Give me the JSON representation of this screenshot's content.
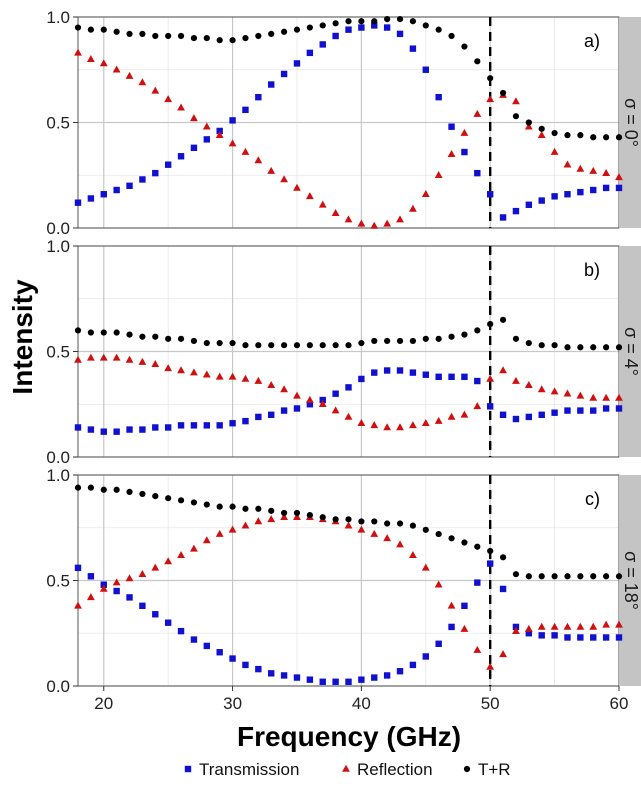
{
  "chart_data": {
    "type": "scatter",
    "xlabel": "Frequency (GHz)",
    "ylabel": "Intensity",
    "xlim": [
      18,
      60
    ],
    "ylim": [
      0,
      1
    ],
    "x_ticks": [
      "20",
      "30",
      "40",
      "50",
      "60"
    ],
    "y_ticks": [
      "0.0",
      "0.5",
      "1.0"
    ],
    "grid": true,
    "legend_position": "bottom",
    "reference_line": {
      "x": 50,
      "style": "dashed"
    },
    "legend": [
      {
        "key": "transmission",
        "label": "Transmission",
        "marker": "square",
        "color": "#1010d0"
      },
      {
        "key": "reflection",
        "label": "Reflection",
        "marker": "triangle",
        "color": "#d01010"
      },
      {
        "key": "tr",
        "label": "T+R",
        "marker": "circle",
        "color": "#000000"
      }
    ],
    "panels": [
      {
        "tag": "a)",
        "strip": "σ = 0°",
        "x": [
          18,
          19,
          20,
          21,
          22,
          23,
          24,
          25,
          26,
          27,
          28,
          29,
          30,
          31,
          32,
          33,
          34,
          35,
          36,
          37,
          38,
          39,
          40,
          41,
          42,
          43,
          44,
          45,
          46,
          47,
          48,
          49,
          50,
          51,
          52,
          53,
          54,
          55,
          56,
          57,
          58,
          59,
          60
        ],
        "series": [
          {
            "key": "transmission",
            "values": [
              0.12,
              0.14,
              0.16,
              0.18,
              0.2,
              0.23,
              0.26,
              0.3,
              0.34,
              0.38,
              0.42,
              0.46,
              0.51,
              0.56,
              0.62,
              0.68,
              0.73,
              0.78,
              0.83,
              0.87,
              0.91,
              0.94,
              0.95,
              0.96,
              0.95,
              0.92,
              0.85,
              0.75,
              0.62,
              0.48,
              0.36,
              0.26,
              0.16,
              0.05,
              0.08,
              0.11,
              0.13,
              0.15,
              0.16,
              0.17,
              0.18,
              0.19,
              0.19
            ]
          },
          {
            "key": "reflection",
            "values": [
              0.83,
              0.8,
              0.78,
              0.75,
              0.72,
              0.69,
              0.65,
              0.61,
              0.57,
              0.52,
              0.48,
              0.44,
              0.4,
              0.36,
              0.32,
              0.27,
              0.23,
              0.19,
              0.15,
              0.11,
              0.07,
              0.04,
              0.02,
              0.01,
              0.02,
              0.04,
              0.09,
              0.16,
              0.25,
              0.35,
              0.45,
              0.54,
              0.61,
              0.63,
              0.6,
              0.48,
              0.44,
              0.36,
              0.3,
              0.28,
              0.27,
              0.26,
              0.24
            ]
          },
          {
            "key": "tr",
            "values": [
              0.95,
              0.94,
              0.94,
              0.93,
              0.92,
              0.92,
              0.91,
              0.91,
              0.91,
              0.9,
              0.9,
              0.89,
              0.89,
              0.9,
              0.91,
              0.92,
              0.93,
              0.94,
              0.95,
              0.96,
              0.97,
              0.98,
              0.98,
              0.98,
              0.99,
              0.99,
              0.98,
              0.96,
              0.94,
              0.91,
              0.86,
              0.79,
              0.71,
              0.64,
              0.53,
              0.5,
              0.47,
              0.45,
              0.44,
              0.44,
              0.43,
              0.43,
              0.43
            ]
          }
        ]
      },
      {
        "tag": "b)",
        "strip": "σ = 4°",
        "x": [
          18,
          19,
          20,
          21,
          22,
          23,
          24,
          25,
          26,
          27,
          28,
          29,
          30,
          31,
          32,
          33,
          34,
          35,
          36,
          37,
          38,
          39,
          40,
          41,
          42,
          43,
          44,
          45,
          46,
          47,
          48,
          49,
          50,
          51,
          52,
          53,
          54,
          55,
          56,
          57,
          58,
          59,
          60
        ],
        "series": [
          {
            "key": "transmission",
            "values": [
              0.14,
              0.13,
              0.12,
              0.12,
              0.13,
              0.13,
              0.14,
              0.14,
              0.15,
              0.15,
              0.15,
              0.15,
              0.16,
              0.17,
              0.19,
              0.2,
              0.22,
              0.23,
              0.25,
              0.27,
              0.3,
              0.33,
              0.37,
              0.4,
              0.41,
              0.41,
              0.4,
              0.39,
              0.38,
              0.38,
              0.38,
              0.36,
              0.24,
              0.2,
              0.18,
              0.19,
              0.2,
              0.21,
              0.22,
              0.22,
              0.22,
              0.23,
              0.23
            ]
          },
          {
            "key": "reflection",
            "values": [
              0.46,
              0.47,
              0.47,
              0.47,
              0.46,
              0.45,
              0.44,
              0.42,
              0.41,
              0.4,
              0.39,
              0.38,
              0.38,
              0.37,
              0.36,
              0.34,
              0.32,
              0.29,
              0.27,
              0.25,
              0.22,
              0.19,
              0.16,
              0.15,
              0.14,
              0.14,
              0.15,
              0.16,
              0.17,
              0.19,
              0.2,
              0.24,
              0.37,
              0.41,
              0.36,
              0.34,
              0.32,
              0.31,
              0.3,
              0.29,
              0.28,
              0.28,
              0.28
            ]
          },
          {
            "key": "tr",
            "values": [
              0.6,
              0.59,
              0.59,
              0.59,
              0.58,
              0.57,
              0.57,
              0.56,
              0.56,
              0.55,
              0.54,
              0.54,
              0.54,
              0.53,
              0.53,
              0.53,
              0.53,
              0.53,
              0.53,
              0.53,
              0.53,
              0.53,
              0.54,
              0.55,
              0.55,
              0.55,
              0.55,
              0.56,
              0.56,
              0.57,
              0.58,
              0.6,
              0.63,
              0.65,
              0.56,
              0.54,
              0.53,
              0.53,
              0.52,
              0.52,
              0.52,
              0.52,
              0.52
            ]
          }
        ]
      },
      {
        "tag": "c)",
        "strip": "σ = 18°",
        "x": [
          18,
          19,
          20,
          21,
          22,
          23,
          24,
          25,
          26,
          27,
          28,
          29,
          30,
          31,
          32,
          33,
          34,
          35,
          36,
          37,
          38,
          39,
          40,
          41,
          42,
          43,
          44,
          45,
          46,
          47,
          48,
          49,
          50,
          51,
          52,
          53,
          54,
          55,
          56,
          57,
          58,
          59,
          60
        ],
        "series": [
          {
            "key": "transmission",
            "values": [
              0.56,
              0.52,
              0.48,
              0.45,
              0.42,
              0.38,
              0.34,
              0.3,
              0.26,
              0.22,
              0.19,
              0.16,
              0.13,
              0.1,
              0.08,
              0.06,
              0.05,
              0.04,
              0.03,
              0.02,
              0.02,
              0.02,
              0.03,
              0.04,
              0.05,
              0.07,
              0.1,
              0.14,
              0.2,
              0.28,
              0.38,
              0.49,
              0.58,
              0.46,
              0.28,
              0.25,
              0.24,
              0.24,
              0.23,
              0.23,
              0.23,
              0.23,
              0.23
            ]
          },
          {
            "key": "reflection",
            "values": [
              0.38,
              0.42,
              0.46,
              0.49,
              0.51,
              0.53,
              0.56,
              0.59,
              0.62,
              0.65,
              0.69,
              0.72,
              0.74,
              0.76,
              0.78,
              0.79,
              0.8,
              0.8,
              0.8,
              0.79,
              0.78,
              0.76,
              0.74,
              0.72,
              0.7,
              0.67,
              0.62,
              0.56,
              0.48,
              0.38,
              0.27,
              0.17,
              0.09,
              0.15,
              0.26,
              0.27,
              0.28,
              0.28,
              0.28,
              0.28,
              0.28,
              0.29,
              0.29
            ]
          },
          {
            "key": "tr",
            "values": [
              0.94,
              0.94,
              0.93,
              0.93,
              0.92,
              0.91,
              0.9,
              0.89,
              0.88,
              0.87,
              0.86,
              0.85,
              0.85,
              0.84,
              0.84,
              0.83,
              0.82,
              0.82,
              0.81,
              0.8,
              0.79,
              0.79,
              0.78,
              0.78,
              0.77,
              0.77,
              0.76,
              0.74,
              0.72,
              0.7,
              0.68,
              0.66,
              0.64,
              0.61,
              0.53,
              0.52,
              0.52,
              0.52,
              0.52,
              0.52,
              0.52,
              0.52,
              0.52
            ]
          }
        ]
      }
    ]
  }
}
